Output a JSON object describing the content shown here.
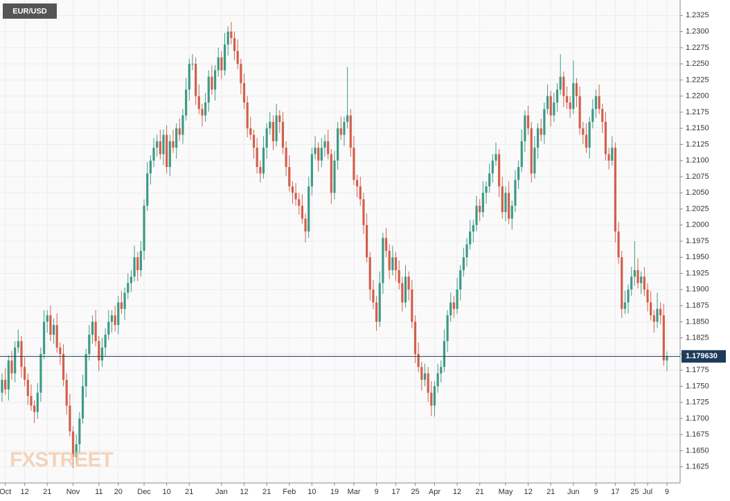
{
  "chart_data": {
    "type": "candlestick",
    "title": "EUR/USD",
    "watermark": "FXSTREET",
    "up_color": "#3d9a85",
    "down_color": "#d35f4b",
    "grid": true,
    "last_price": {
      "value": 1.17963,
      "label": "1.179630"
    },
    "ylim": [
      1.16,
      1.2349
    ],
    "yticks": [
      1.1625,
      {
        "value": 1.165,
        "label": "1.1650"
      },
      1.1675,
      {
        "value": 1.17,
        "label": "1.1700"
      },
      1.1725,
      {
        "value": 1.175,
        "label": "1.1750"
      },
      1.1775,
      {
        "value": 1.18,
        "label": "1.1800"
      },
      1.1825,
      {
        "value": 1.185,
        "label": "1.1850"
      },
      1.1875,
      {
        "value": 1.19,
        "label": "1.1900"
      },
      1.1925,
      {
        "value": 1.195,
        "label": "1.1950"
      },
      1.1975,
      {
        "value": 1.2,
        "label": "1.2000"
      },
      1.2025,
      {
        "value": 1.205,
        "label": "1.2050"
      },
      1.2075,
      {
        "value": 1.21,
        "label": "1.2100"
      },
      1.2125,
      {
        "value": 1.215,
        "label": "1.2150"
      },
      1.2175,
      {
        "value": 1.22,
        "label": "1.2200"
      },
      1.2225,
      {
        "value": 1.225,
        "label": "1.2250"
      },
      1.2275,
      {
        "value": 1.23,
        "label": "1.2300"
      },
      1.2325
    ],
    "categories": [
      null,
      "Oct",
      null,
      null,
      null,
      null,
      null,
      "12",
      null,
      null,
      null,
      null,
      null,
      null,
      "21",
      null,
      null,
      null,
      null,
      null,
      null,
      null,
      "Nov",
      null,
      null,
      null,
      null,
      null,
      null,
      null,
      "11",
      null,
      null,
      null,
      null,
      null,
      "20",
      null,
      null,
      null,
      null,
      null,
      null,
      null,
      "Dec",
      null,
      null,
      null,
      null,
      null,
      null,
      "10",
      null,
      null,
      null,
      null,
      null,
      null,
      "21",
      null,
      null,
      null,
      null,
      null,
      null,
      null,
      null,
      null,
      "Jan",
      null,
      null,
      null,
      null,
      null,
      null,
      "12",
      null,
      null,
      null,
      null,
      null,
      null,
      "21",
      null,
      null,
      null,
      null,
      null,
      null,
      "Feb",
      null,
      null,
      null,
      null,
      null,
      null,
      "10",
      null,
      null,
      null,
      null,
      null,
      null,
      "19",
      null,
      null,
      null,
      null,
      null,
      "Mar",
      null,
      null,
      null,
      null,
      null,
      null,
      "9",
      null,
      null,
      null,
      null,
      null,
      "17",
      null,
      null,
      null,
      null,
      null,
      "25",
      null,
      null,
      null,
      null,
      null,
      "Apr",
      null,
      null,
      null,
      null,
      null,
      null,
      "12",
      null,
      null,
      null,
      null,
      null,
      null,
      "21",
      null,
      null,
      null,
      null,
      null,
      null,
      null,
      "May",
      null,
      null,
      null,
      null,
      null,
      null,
      "12",
      null,
      null,
      null,
      null,
      null,
      null,
      "21",
      null,
      null,
      null,
      null,
      null,
      null,
      "Jun",
      null,
      null,
      null,
      null,
      null,
      null,
      "9",
      null,
      null,
      null,
      null,
      null,
      "17",
      null,
      null,
      null,
      null,
      null,
      "25",
      null,
      null,
      null,
      "Jul",
      null,
      null,
      null,
      null,
      null,
      "9"
    ],
    "open": [
      1.174,
      1.176,
      1.1745,
      1.179,
      1.177,
      1.181,
      1.182,
      1.178,
      1.176,
      1.1735,
      1.172,
      1.171,
      1.174,
      1.18,
      1.185,
      1.186,
      1.183,
      1.1845,
      1.181,
      1.18,
      1.176,
      1.172,
      1.168,
      1.164,
      1.166,
      1.17,
      1.175,
      1.18,
      1.183,
      1.185,
      1.182,
      1.179,
      1.181,
      1.183,
      1.185,
      1.186,
      1.1845,
      1.188,
      1.187,
      1.1895,
      1.191,
      1.192,
      1.195,
      1.193,
      1.196,
      1.203,
      1.208,
      1.21,
      1.212,
      1.213,
      1.211,
      1.214,
      1.209,
      1.213,
      1.212,
      1.215,
      1.214,
      1.217,
      1.221,
      1.225,
      1.225,
      1.22,
      1.218,
      1.217,
      1.219,
      1.223,
      1.221,
      1.224,
      1.226,
      1.224,
      1.228,
      1.23,
      1.229,
      1.227,
      1.225,
      1.222,
      1.219,
      1.215,
      1.214,
      1.212,
      1.209,
      1.208,
      1.212,
      1.215,
      1.216,
      1.213,
      1.217,
      1.216,
      1.212,
      1.209,
      1.206,
      1.205,
      1.204,
      1.203,
      1.201,
      1.199,
      1.206,
      1.211,
      1.212,
      1.21,
      1.212,
      1.213,
      1.211,
      1.205,
      1.21,
      1.215,
      1.214,
      1.216,
      1.217,
      1.212,
      1.207,
      1.206,
      1.204,
      1.2,
      1.195,
      1.19,
      1.188,
      1.185,
      1.191,
      1.198,
      1.196,
      1.193,
      1.195,
      1.193,
      1.191,
      1.188,
      1.192,
      1.19,
      1.185,
      1.18,
      1.178,
      1.176,
      1.177,
      1.174,
      1.172,
      1.175,
      1.177,
      1.178,
      1.182,
      1.186,
      1.188,
      1.187,
      1.19,
      1.193,
      1.195,
      1.197,
      1.199,
      1.2,
      1.203,
      1.202,
      1.205,
      1.206,
      1.208,
      1.21,
      1.211,
      1.206,
      1.202,
      1.205,
      1.201,
      1.203,
      1.207,
      1.209,
      1.213,
      1.217,
      1.215,
      1.208,
      1.212,
      1.215,
      1.214,
      1.218,
      1.22,
      1.217,
      1.219,
      1.221,
      1.223,
      1.22,
      1.219,
      1.218,
      1.222,
      1.22,
      1.215,
      1.214,
      1.212,
      1.216,
      1.218,
      1.22,
      1.218,
      1.216,
      1.211,
      1.21,
      1.212,
      1.199,
      1.195,
      1.187,
      1.188,
      1.19,
      1.192,
      1.193,
      1.191,
      1.192,
      1.19,
      1.188,
      1.186,
      1.185,
      1.187,
      1.186,
      1.179
    ],
    "high": [
      1.177,
      1.1778,
      1.1798,
      1.1805,
      1.182,
      1.1838,
      1.1828,
      1.1795,
      1.177,
      1.1753,
      1.1728,
      1.1755,
      1.181,
      1.1868,
      1.1868,
      1.1875,
      1.1855,
      1.1863,
      1.1818,
      1.1815,
      1.177,
      1.1738,
      1.1688,
      1.1675,
      1.171,
      1.1768,
      1.1808,
      1.1845,
      1.186,
      1.1868,
      1.1828,
      1.1825,
      1.184,
      1.1868,
      1.1868,
      1.1875,
      1.189,
      1.1898,
      1.1903,
      1.1925,
      1.193,
      1.1968,
      1.1958,
      1.1975,
      1.204,
      1.2098,
      1.2108,
      1.2135,
      1.214,
      1.2148,
      1.2148,
      1.2155,
      1.214,
      1.2148,
      1.2158,
      1.2165,
      1.218,
      1.2228,
      1.2258,
      1.2265,
      1.226,
      1.2218,
      1.2188,
      1.2205,
      1.224,
      1.2248,
      1.2248,
      1.2275,
      1.227,
      1.2298,
      1.2308,
      1.2315,
      1.23,
      1.2288,
      1.2258,
      1.2235,
      1.22,
      1.2168,
      1.2148,
      1.2135,
      1.21,
      1.2138,
      1.2158,
      1.2175,
      1.217,
      1.2188,
      1.2178,
      1.2175,
      1.213,
      1.2108,
      1.2068,
      1.2065,
      1.205,
      1.2048,
      1.2018,
      1.2075,
      1.212,
      1.2138,
      1.2128,
      1.2135,
      1.214,
      1.2148,
      1.2118,
      1.2115,
      1.216,
      1.2168,
      1.2168,
      1.2245,
      1.218,
      1.2138,
      1.2078,
      1.2075,
      1.205,
      1.2018,
      1.1958,
      1.1915,
      1.189,
      1.1928,
      1.1988,
      1.1995,
      1.197,
      1.1968,
      1.1958,
      1.1945,
      1.192,
      1.1938,
      1.1928,
      1.1915,
      1.186,
      1.1818,
      1.1788,
      1.1785,
      1.178,
      1.1758,
      1.1758,
      1.1785,
      1.179,
      1.1838,
      1.1868,
      1.1895,
      1.189,
      1.1918,
      1.1938,
      1.1965,
      1.198,
      1.2008,
      1.2008,
      1.2045,
      1.204,
      1.2068,
      1.2068,
      1.2095,
      1.211,
      1.2128,
      1.2118,
      1.2075,
      1.206,
      1.2068,
      1.2038,
      1.2085,
      1.21,
      1.2148,
      1.2178,
      1.2185,
      1.216,
      1.2138,
      1.2158,
      1.2165,
      1.219,
      1.2218,
      1.2208,
      1.2205,
      1.222,
      1.2265,
      1.2238,
      1.2215,
      1.22,
      1.2255,
      1.2228,
      1.2215,
      1.216,
      1.2158,
      1.2168,
      1.2195,
      1.221,
      1.2218,
      1.2188,
      1.2175,
      1.212,
      1.2138,
      1.2128,
      1.2005,
      1.196,
      1.1898,
      1.1908,
      1.1935,
      1.1975,
      1.1948,
      1.1928,
      1.1935,
      1.191,
      1.1898,
      1.1868,
      1.1895,
      1.188,
      1.1878,
      1.1804
    ],
    "low": [
      1.1726,
      1.1737,
      1.1728,
      1.176,
      1.1756,
      1.1802,
      1.1763,
      1.175,
      1.1721,
      1.1712,
      1.1693,
      1.17,
      1.1726,
      1.1792,
      1.1833,
      1.182,
      1.1816,
      1.1802,
      1.1783,
      1.175,
      1.1706,
      1.1672,
      1.1623,
      1.163,
      1.1646,
      1.1692,
      1.1733,
      1.179,
      1.1816,
      1.1812,
      1.1773,
      1.178,
      1.1796,
      1.1822,
      1.1833,
      1.1835,
      1.1831,
      1.1862,
      1.1853,
      1.1885,
      1.1896,
      1.1912,
      1.1913,
      1.192,
      1.1946,
      1.2022,
      1.2063,
      1.209,
      1.2106,
      1.2102,
      1.2093,
      1.208,
      1.2076,
      1.2112,
      1.2103,
      1.213,
      1.2126,
      1.2162,
      1.2193,
      1.224,
      1.2186,
      1.2172,
      1.2153,
      1.216,
      1.2176,
      1.2202,
      1.2193,
      1.223,
      1.2226,
      1.2232,
      1.2263,
      1.228,
      1.2256,
      1.2242,
      1.2203,
      1.218,
      1.2136,
      1.2132,
      1.2103,
      1.208,
      1.2066,
      1.2072,
      1.2103,
      1.214,
      1.2116,
      1.2122,
      1.2143,
      1.211,
      1.2076,
      1.2052,
      1.2033,
      1.203,
      1.2016,
      1.2002,
      1.1973,
      1.198,
      1.2046,
      1.2102,
      1.2083,
      1.209,
      1.2106,
      1.2102,
      1.2033,
      1.204,
      1.2086,
      1.2132,
      1.2123,
      1.215,
      1.2106,
      1.2062,
      1.2043,
      1.203,
      1.1986,
      1.1942,
      1.1883,
      1.187,
      1.1836,
      1.1842,
      1.1893,
      1.195,
      1.1916,
      1.1922,
      1.1913,
      1.19,
      1.1866,
      1.1872,
      1.1883,
      1.184,
      1.1786,
      1.1772,
      1.1743,
      1.175,
      1.1726,
      1.1704,
      1.1703,
      1.174,
      1.1756,
      1.1772,
      1.1803,
      1.185,
      1.1856,
      1.1862,
      1.1883,
      1.192,
      1.1936,
      1.1962,
      1.1973,
      1.199,
      1.2006,
      1.2012,
      1.2033,
      1.205,
      1.2066,
      1.2092,
      1.2043,
      1.201,
      1.2006,
      1.2002,
      1.1993,
      1.202,
      1.2056,
      1.2082,
      1.2113,
      1.214,
      1.2066,
      1.2072,
      1.2103,
      1.213,
      1.2126,
      1.2172,
      1.2153,
      1.216,
      1.2176,
      1.2202,
      1.2183,
      1.218,
      1.2166,
      1.2172,
      1.2183,
      1.214,
      1.2126,
      1.2112,
      1.2103,
      1.215,
      1.2166,
      1.2172,
      1.2143,
      1.21,
      1.2086,
      1.2092,
      1.1973,
      1.194,
      1.1856,
      1.1862,
      1.1863,
      1.189,
      1.1906,
      1.1902,
      1.1893,
      1.189,
      1.1866,
      1.1852,
      1.1833,
      1.184,
      1.1846,
      1.1782,
      1.1773
    ],
    "close": [
      1.176,
      1.1745,
      1.179,
      1.177,
      1.181,
      1.182,
      1.178,
      1.176,
      1.1735,
      1.172,
      1.171,
      1.174,
      1.18,
      1.185,
      1.186,
      1.183,
      1.1845,
      1.181,
      1.18,
      1.176,
      1.172,
      1.168,
      1.164,
      1.166,
      1.17,
      1.175,
      1.18,
      1.183,
      1.185,
      1.182,
      1.179,
      1.181,
      1.183,
      1.185,
      1.186,
      1.1845,
      1.188,
      1.187,
      1.1895,
      1.191,
      1.192,
      1.195,
      1.193,
      1.196,
      1.203,
      1.208,
      1.21,
      1.212,
      1.213,
      1.211,
      1.214,
      1.209,
      1.213,
      1.212,
      1.215,
      1.214,
      1.217,
      1.221,
      1.225,
      1.225,
      1.22,
      1.218,
      1.217,
      1.219,
      1.223,
      1.221,
      1.224,
      1.226,
      1.224,
      1.228,
      1.23,
      1.229,
      1.227,
      1.225,
      1.222,
      1.219,
      1.215,
      1.214,
      1.212,
      1.209,
      1.208,
      1.212,
      1.215,
      1.216,
      1.213,
      1.217,
      1.216,
      1.212,
      1.209,
      1.206,
      1.205,
      1.204,
      1.203,
      1.201,
      1.199,
      1.206,
      1.211,
      1.212,
      1.21,
      1.212,
      1.213,
      1.211,
      1.205,
      1.21,
      1.215,
      1.214,
      1.216,
      1.217,
      1.212,
      1.207,
      1.206,
      1.204,
      1.2,
      1.195,
      1.19,
      1.188,
      1.185,
      1.191,
      1.198,
      1.196,
      1.193,
      1.195,
      1.193,
      1.191,
      1.188,
      1.192,
      1.19,
      1.185,
      1.18,
      1.178,
      1.176,
      1.177,
      1.174,
      1.172,
      1.175,
      1.177,
      1.178,
      1.182,
      1.186,
      1.188,
      1.187,
      1.19,
      1.193,
      1.195,
      1.197,
      1.199,
      1.2,
      1.203,
      1.202,
      1.205,
      1.206,
      1.208,
      1.21,
      1.211,
      1.206,
      1.202,
      1.205,
      1.201,
      1.203,
      1.207,
      1.209,
      1.213,
      1.217,
      1.215,
      1.208,
      1.212,
      1.215,
      1.214,
      1.218,
      1.22,
      1.217,
      1.219,
      1.221,
      1.223,
      1.22,
      1.219,
      1.218,
      1.222,
      1.22,
      1.215,
      1.214,
      1.212,
      1.216,
      1.218,
      1.22,
      1.218,
      1.216,
      1.211,
      1.21,
      1.212,
      1.199,
      1.195,
      1.187,
      1.188,
      1.19,
      1.192,
      1.193,
      1.191,
      1.192,
      1.19,
      1.188,
      1.186,
      1.185,
      1.187,
      1.186,
      1.179,
      1.1796
    ]
  }
}
